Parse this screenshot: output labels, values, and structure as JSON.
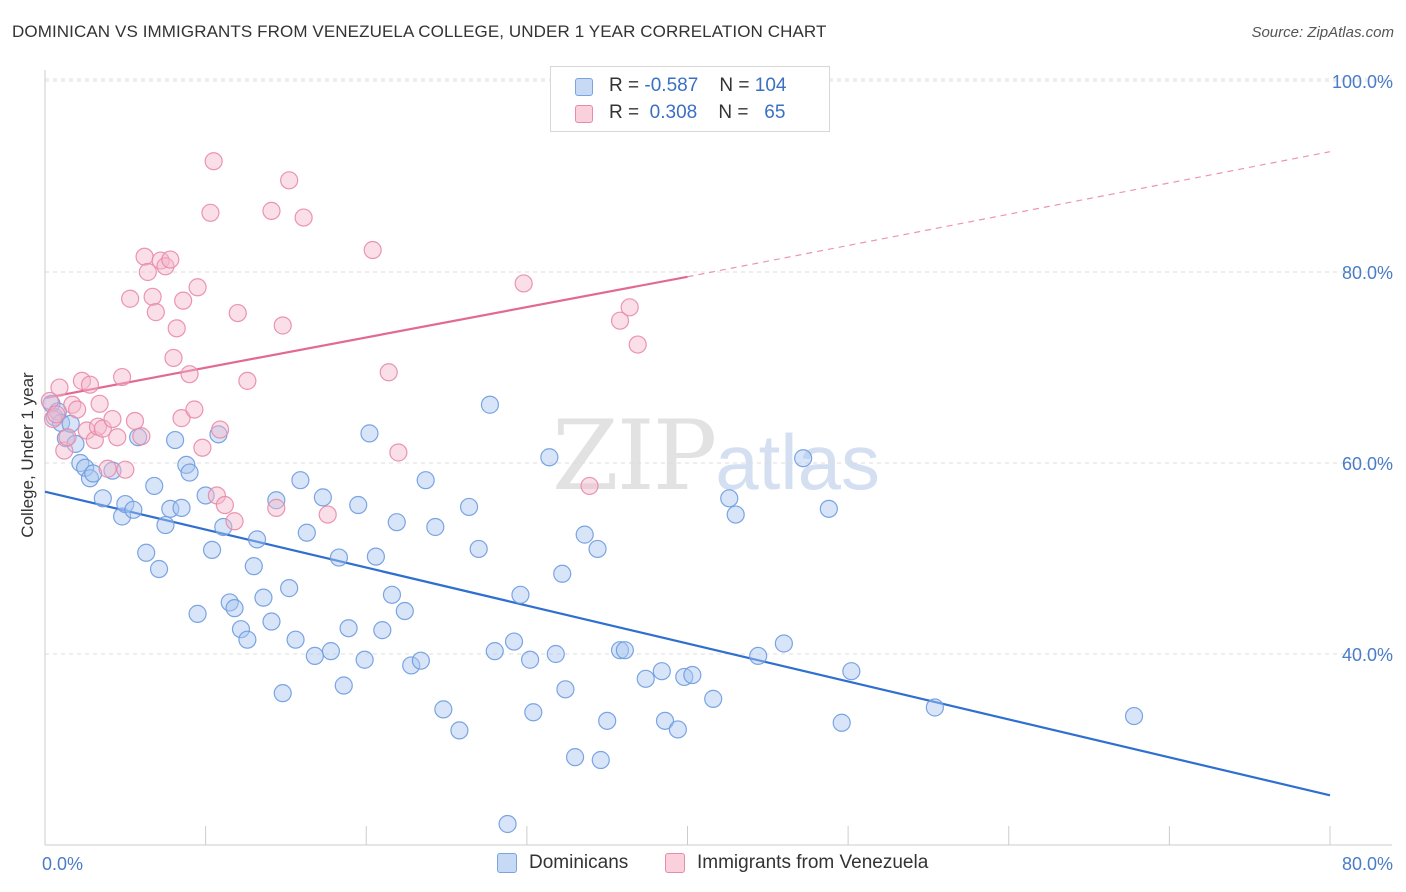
{
  "title": "DOMINICAN VS IMMIGRANTS FROM VENEZUELA COLLEGE, UNDER 1 YEAR CORRELATION CHART",
  "source": "Source: ZipAtlas.com",
  "watermark": {
    "zip": "ZIP",
    "atlas": "atlas"
  },
  "legend": {
    "rows": [
      {
        "r_label": "R =",
        "r_value": "-0.587",
        "n_label": "N =",
        "n_value": "104",
        "color": "#a9c6f0"
      },
      {
        "r_label": "R =",
        "r_value": "0.308",
        "n_label": "N =",
        "n_value": "65",
        "color": "#f5b8cb"
      }
    ]
  },
  "bottom_legend": [
    {
      "label": "Dominicans",
      "color": "#a9c6f0"
    },
    {
      "label": "Immigrants from Venezuela",
      "color": "#f5b8cb"
    }
  ],
  "colors": {
    "blue_fill": "#a9c6f0",
    "blue_stroke": "#6d9be0",
    "blue_line": "#2f6fd0",
    "pink_fill": "#f5b8cb",
    "pink_stroke": "#e98aa8",
    "pink_line": "#e26a92",
    "grid": "#dcdcdc",
    "axis": "#cccccc",
    "tick_text": "#4a7cc7"
  },
  "chart_data": {
    "type": "scatter",
    "title": "DOMINICAN VS IMMIGRANTS FROM VENEZUELA COLLEGE, UNDER 1 YEAR CORRELATION CHART",
    "xlabel": "",
    "ylabel": "College, Under 1 year",
    "xlim": [
      0,
      80
    ],
    "ylim": [
      20,
      104
    ],
    "x_tick_labels": [
      {
        "value": 0,
        "label": "0.0%"
      },
      {
        "value": 80,
        "label": "80.0%"
      }
    ],
    "y_tick_labels": [
      {
        "value": 40,
        "label": "40.0%"
      },
      {
        "value": 60,
        "label": "60.0%"
      },
      {
        "value": 80,
        "label": "80.0%"
      },
      {
        "value": 100,
        "label": "100.0%"
      }
    ],
    "grid": true,
    "legend_position": "top-center",
    "series": [
      {
        "name": "Dominicans",
        "color": "#a9c6f0",
        "trend": {
          "x": [
            0,
            80
          ],
          "y": [
            57.0,
            25.2
          ]
        },
        "points": [
          [
            0.4,
            66.2
          ],
          [
            0.6,
            64.8
          ],
          [
            0.8,
            65.4
          ],
          [
            1.0,
            64.2
          ],
          [
            1.3,
            62.6
          ],
          [
            1.6,
            64.1
          ],
          [
            1.9,
            62.0
          ],
          [
            2.2,
            60.0
          ],
          [
            2.5,
            59.5
          ],
          [
            2.8,
            58.4
          ],
          [
            3.0,
            58.9
          ],
          [
            3.6,
            56.3
          ],
          [
            4.2,
            59.2
          ],
          [
            4.8,
            54.4
          ],
          [
            5.0,
            55.7
          ],
          [
            5.5,
            55.1
          ],
          [
            5.8,
            62.7
          ],
          [
            6.3,
            50.6
          ],
          [
            6.8,
            57.6
          ],
          [
            7.1,
            48.9
          ],
          [
            7.5,
            53.5
          ],
          [
            7.8,
            55.2
          ],
          [
            8.1,
            62.4
          ],
          [
            8.5,
            55.3
          ],
          [
            8.8,
            59.8
          ],
          [
            9.0,
            59.0
          ],
          [
            9.5,
            44.2
          ],
          [
            10.0,
            56.6
          ],
          [
            10.4,
            50.9
          ],
          [
            10.8,
            63.0
          ],
          [
            11.1,
            53.3
          ],
          [
            11.5,
            45.4
          ],
          [
            11.8,
            44.8
          ],
          [
            12.2,
            42.6
          ],
          [
            12.6,
            41.5
          ],
          [
            13.0,
            49.2
          ],
          [
            13.2,
            52.0
          ],
          [
            13.6,
            45.9
          ],
          [
            14.1,
            43.4
          ],
          [
            14.4,
            56.1
          ],
          [
            14.8,
            35.9
          ],
          [
            15.2,
            46.9
          ],
          [
            15.6,
            41.5
          ],
          [
            15.9,
            58.2
          ],
          [
            16.3,
            52.7
          ],
          [
            16.8,
            39.8
          ],
          [
            17.3,
            56.4
          ],
          [
            17.8,
            40.3
          ],
          [
            18.3,
            50.1
          ],
          [
            18.6,
            36.7
          ],
          [
            18.9,
            42.7
          ],
          [
            19.5,
            55.6
          ],
          [
            19.9,
            39.4
          ],
          [
            20.2,
            63.1
          ],
          [
            20.6,
            50.2
          ],
          [
            21.0,
            42.5
          ],
          [
            21.6,
            46.2
          ],
          [
            21.9,
            53.8
          ],
          [
            22.4,
            44.5
          ],
          [
            22.8,
            38.8
          ],
          [
            23.4,
            39.3
          ],
          [
            23.7,
            58.2
          ],
          [
            24.3,
            53.3
          ],
          [
            24.8,
            34.2
          ],
          [
            25.8,
            32.0
          ],
          [
            26.4,
            55.4
          ],
          [
            27.0,
            51.0
          ],
          [
            27.7,
            66.1
          ],
          [
            28.0,
            40.3
          ],
          [
            28.8,
            22.2
          ],
          [
            29.2,
            41.3
          ],
          [
            29.6,
            46.2
          ],
          [
            30.2,
            39.4
          ],
          [
            30.4,
            33.9
          ],
          [
            31.4,
            60.6
          ],
          [
            31.8,
            40.0
          ],
          [
            32.2,
            48.4
          ],
          [
            32.4,
            36.3
          ],
          [
            33.0,
            29.2
          ],
          [
            33.6,
            52.5
          ],
          [
            34.4,
            51.0
          ],
          [
            34.6,
            28.9
          ],
          [
            35.0,
            33.0
          ],
          [
            35.8,
            40.4
          ],
          [
            36.1,
            40.4
          ],
          [
            37.4,
            37.4
          ],
          [
            38.4,
            38.2
          ],
          [
            38.6,
            33.0
          ],
          [
            39.4,
            32.1
          ],
          [
            39.8,
            37.6
          ],
          [
            40.3,
            37.8
          ],
          [
            41.6,
            35.3
          ],
          [
            42.6,
            56.3
          ],
          [
            43.0,
            54.6
          ],
          [
            44.4,
            39.8
          ],
          [
            46.0,
            41.1
          ],
          [
            47.2,
            60.5
          ],
          [
            48.8,
            55.2
          ],
          [
            49.6,
            32.8
          ],
          [
            50.2,
            38.2
          ],
          [
            55.4,
            34.4
          ],
          [
            67.8,
            33.5
          ]
        ]
      },
      {
        "name": "Immigrants from Venezuela",
        "color": "#f5b8cb",
        "trend": {
          "x": [
            0,
            40
          ],
          "y": [
            66.8,
            79.5
          ]
        },
        "trend_extension": {
          "x": [
            40,
            80
          ],
          "y": [
            79.5,
            92.6
          ]
        },
        "points": [
          [
            0.3,
            66.5
          ],
          [
            0.5,
            64.6
          ],
          [
            0.7,
            65.1
          ],
          [
            0.9,
            67.9
          ],
          [
            1.2,
            61.3
          ],
          [
            1.4,
            62.7
          ],
          [
            1.7,
            66.1
          ],
          [
            2.0,
            65.6
          ],
          [
            2.3,
            68.6
          ],
          [
            2.6,
            63.4
          ],
          [
            2.8,
            68.2
          ],
          [
            3.1,
            62.4
          ],
          [
            3.3,
            63.8
          ],
          [
            3.4,
            66.2
          ],
          [
            3.6,
            63.6
          ],
          [
            3.9,
            59.4
          ],
          [
            4.2,
            64.6
          ],
          [
            4.5,
            62.7
          ],
          [
            4.8,
            69.0
          ],
          [
            5.0,
            59.3
          ],
          [
            5.3,
            77.2
          ],
          [
            5.6,
            64.4
          ],
          [
            6.0,
            62.8
          ],
          [
            6.2,
            81.6
          ],
          [
            6.4,
            80.0
          ],
          [
            6.7,
            77.4
          ],
          [
            6.9,
            75.8
          ],
          [
            7.2,
            81.2
          ],
          [
            7.5,
            80.6
          ],
          [
            7.8,
            81.3
          ],
          [
            8.0,
            71.0
          ],
          [
            8.2,
            74.1
          ],
          [
            8.5,
            64.7
          ],
          [
            8.6,
            77.0
          ],
          [
            9.0,
            69.3
          ],
          [
            9.3,
            65.6
          ],
          [
            9.5,
            78.4
          ],
          [
            9.8,
            61.6
          ],
          [
            10.3,
            86.2
          ],
          [
            10.5,
            91.6
          ],
          [
            10.7,
            56.6
          ],
          [
            10.9,
            63.5
          ],
          [
            11.2,
            55.6
          ],
          [
            11.8,
            53.9
          ],
          [
            12.0,
            75.7
          ],
          [
            12.6,
            68.6
          ],
          [
            14.1,
            86.4
          ],
          [
            14.4,
            55.3
          ],
          [
            14.8,
            74.4
          ],
          [
            15.2,
            89.6
          ],
          [
            16.1,
            85.7
          ],
          [
            17.6,
            54.6
          ],
          [
            20.4,
            82.3
          ],
          [
            21.4,
            69.5
          ],
          [
            22.0,
            61.1
          ],
          [
            29.8,
            78.8
          ],
          [
            33.9,
            57.6
          ],
          [
            35.8,
            74.9
          ],
          [
            36.4,
            76.3
          ],
          [
            36.9,
            72.4
          ]
        ]
      }
    ]
  }
}
